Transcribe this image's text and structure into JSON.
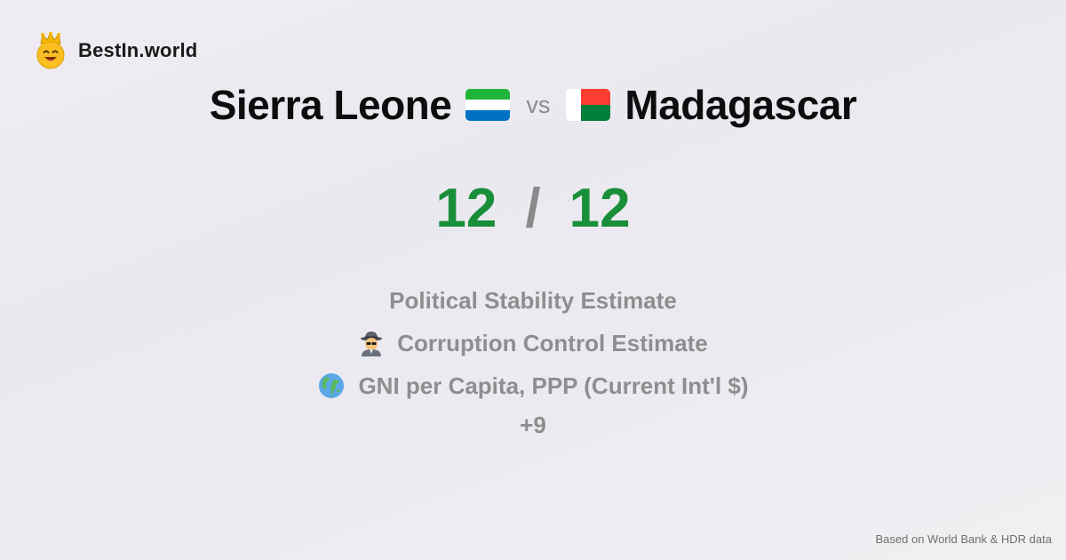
{
  "brand": {
    "name": "BestIn.world",
    "logo_icon": "crowned-smiley-icon"
  },
  "comparison": {
    "left_country": "Sierra Leone",
    "left_flag_icon": "sierra-leone-flag-icon",
    "vs_label": "vs",
    "right_country": "Madagascar",
    "right_flag_icon": "madagascar-flag-icon"
  },
  "score": {
    "left": "12",
    "separator": "/",
    "right": "12"
  },
  "metrics": [
    {
      "label": "Political Stability Estimate",
      "icon": ""
    },
    {
      "label": "Corruption Control Estimate",
      "icon": "detective-icon"
    },
    {
      "label": "GNI per Capita, PPP (Current Int'l $)",
      "icon": "globe-icon"
    }
  ],
  "more_label": "+9",
  "footer": {
    "note": "Based on World Bank & HDR data"
  },
  "colors": {
    "score_green": "#1a8f3a",
    "muted_gray": "#8e8e8e",
    "sierra_leone_green": "#1eb53a",
    "sierra_leone_white": "#ffffff",
    "sierra_leone_blue": "#0072c6",
    "madagascar_white": "#ffffff",
    "madagascar_red": "#fc3d32",
    "madagascar_green": "#007e3a"
  }
}
